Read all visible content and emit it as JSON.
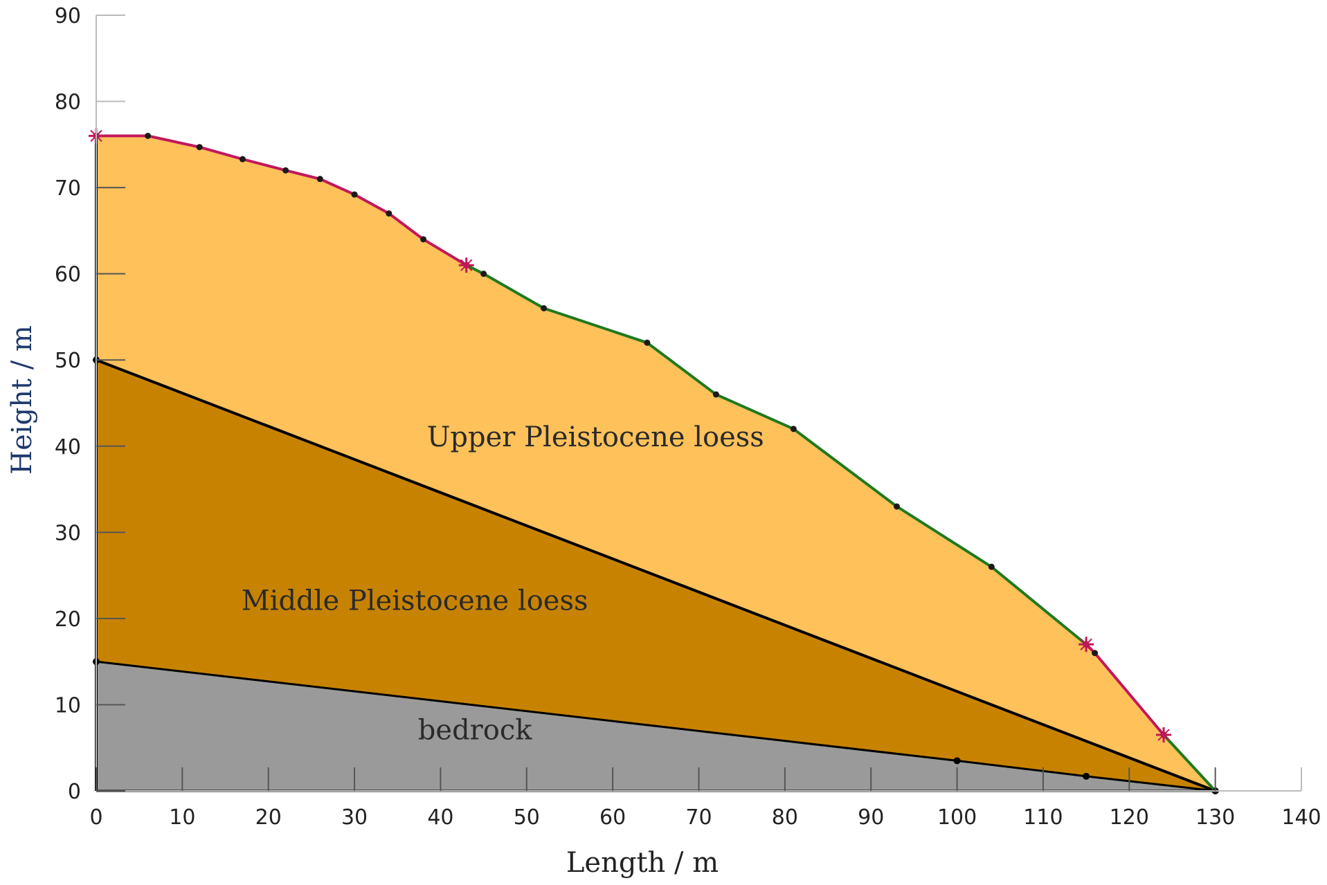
{
  "chart_data": {
    "type": "area",
    "xlabel": "Length / m",
    "ylabel": "Height / m",
    "xlim": [
      0,
      140
    ],
    "ylim": [
      0,
      90
    ],
    "xticks": [
      0,
      10,
      20,
      30,
      40,
      50,
      60,
      70,
      80,
      90,
      100,
      110,
      120,
      130,
      140
    ],
    "yticks": [
      0,
      10,
      20,
      30,
      40,
      50,
      60,
      70,
      80,
      90
    ],
    "grid": false,
    "colors": {
      "upper": "#FFC15A",
      "middle": "#C78300",
      "bedrock": "#9A9A9A",
      "boundary": "#000000",
      "surface_red": "#C2185B",
      "surface_green": "#1F7A1F",
      "axis": "#BBBBBB",
      "xlabel_color": "#222222",
      "ylabel_color": "#1F3A6E"
    },
    "surface_profile": {
      "x": [
        0,
        6,
        12,
        17,
        22,
        26,
        30,
        34,
        38,
        43,
        45,
        52,
        64,
        72,
        81,
        93,
        104,
        115,
        116,
        124,
        130
      ],
      "y": [
        76,
        76,
        74.7,
        73.3,
        72,
        71,
        69.2,
        67,
        64,
        61,
        60,
        56,
        52,
        46,
        42,
        33,
        26,
        17,
        16,
        6.5,
        0
      ]
    },
    "surface_segments": [
      {
        "color": "red",
        "x_range": [
          0,
          43
        ]
      },
      {
        "color": "green",
        "x_range": [
          43,
          115
        ]
      },
      {
        "color": "red",
        "x_range": [
          115,
          124
        ]
      },
      {
        "color": "green",
        "x_range": [
          124,
          130
        ]
      }
    ],
    "middle_top_boundary": {
      "x": [
        0,
        130
      ],
      "y": [
        50,
        0
      ]
    },
    "bedrock_top_boundary": {
      "x": [
        0,
        100,
        115,
        130
      ],
      "y": [
        15,
        3.5,
        1.7,
        0
      ]
    },
    "cross_markers": [
      {
        "x": 0,
        "y": 76
      },
      {
        "x": 43,
        "y": 61
      },
      {
        "x": 115,
        "y": 17
      },
      {
        "x": 124,
        "y": 6.5
      }
    ],
    "layers": [
      {
        "label": "Upper Pleistocene loess",
        "label_x": 58,
        "label_y": 40
      },
      {
        "label": "Middle Pleistocene loess",
        "label_x": 37,
        "label_y": 21
      },
      {
        "label": "bedrock",
        "label_x": 44,
        "label_y": 6
      }
    ]
  }
}
